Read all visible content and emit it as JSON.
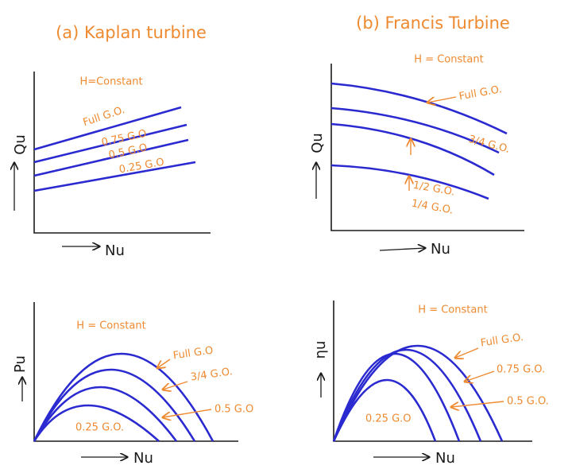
{
  "titles": [
    "(a) Kaplan turbine",
    "(b) Francis Turbine"
  ],
  "plots": [
    {
      "condition": "H=Constant",
      "y_label": "Qu",
      "x_label": "Nu",
      "curve_labels": [
        "Full G.O.",
        "0.75 G.O",
        "0.5 G.O",
        "0.25 G.O"
      ]
    },
    {
      "condition": "H = Constant",
      "y_label": "Qu",
      "x_label": "Nu",
      "curve_labels": [
        "Full G.O.",
        "3/4 G.O.",
        "1/2 G.O.",
        "1/4 G.O."
      ]
    },
    {
      "condition": "H = Constant",
      "y_label": "Pu",
      "x_label": "Nu",
      "curve_labels": [
        "Full G.O",
        "3/4 G.O.",
        "0.5 G.O",
        "0.25 G.O."
      ]
    },
    {
      "condition": "H = Constant",
      "y_label": "ηu",
      "x_label": "Nu",
      "curve_labels": [
        "Full G.O.",
        "0.75 G.O.",
        "0.5 G.O.",
        "0.25 G.O"
      ]
    }
  ]
}
